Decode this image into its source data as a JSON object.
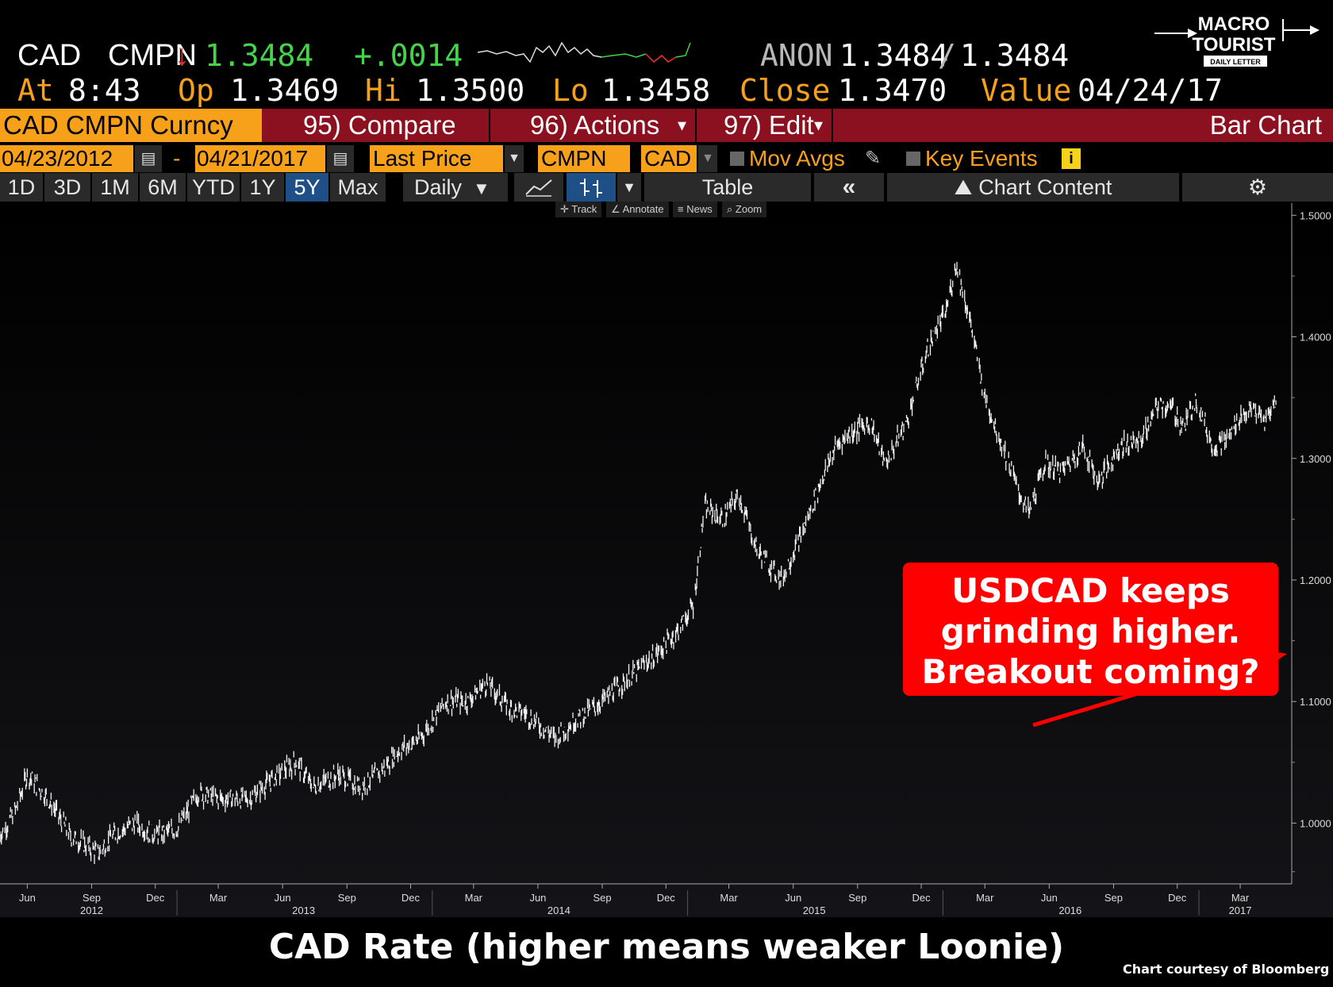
{
  "quote": {
    "currency": "CAD",
    "source": "CMPN",
    "arrow": "↓",
    "last": "1.3484",
    "change": "+.0014",
    "anon_label": "ANON",
    "bid": "1.3484",
    "slash": "/",
    "ask": "1.3484",
    "at_label": "At",
    "time": "8:43",
    "open_label": "Op",
    "open": "1.3469",
    "high_label": "Hi",
    "high": "1.3500",
    "low_label": "Lo",
    "low": "1.3458",
    "close_label": "Close",
    "close": "1.3470",
    "value_label": "Value",
    "value_date": "04/24/17"
  },
  "logo": {
    "line1": "MACRO",
    "line2": "TOURIST",
    "line3": "DAILY LETTER"
  },
  "menu": {
    "security": "CAD CMPN Curncy",
    "compare": "95) Compare",
    "actions": "96) Actions",
    "edit": "97) Edit",
    "chart_type": "Bar Chart"
  },
  "controls": {
    "start_date": "04/23/2012",
    "dash": "-",
    "end_date": "04/21/2017",
    "field": "Last Price",
    "source": "CMPN",
    "currency": "CAD",
    "mov_avgs": "Mov Avgs",
    "key_events": "Key Events"
  },
  "tabs": {
    "items": [
      "1D",
      "3D",
      "1M",
      "6M",
      "YTD",
      "1Y",
      "5Y",
      "Max"
    ],
    "active": "5Y",
    "frequency": "Daily",
    "table": "Table",
    "chart_content": "Chart Content"
  },
  "toolbar": {
    "track": "Track",
    "annotate": "Annotate",
    "news": "News",
    "zoom": "Zoom"
  },
  "colors": {
    "orange": "#f7a11a",
    "red_bar": "#8b1020",
    "up": "#46d24a",
    "down": "#ff2b2b",
    "annotation": "#ff0000"
  },
  "annotation": {
    "line1": "USDCAD keeps",
    "line2": "grinding higher.",
    "line3": "Breakout coming?"
  },
  "footer": {
    "title": "CAD Rate (higher means weaker Loonie)",
    "credit": "Chart courtesy of Bloomberg"
  },
  "chart_data": {
    "type": "bar",
    "title": "",
    "xlabel": "",
    "ylabel": "",
    "ylim": [
      0.95,
      1.51
    ],
    "grid": false,
    "yticks": [
      "1.5000",
      "1.4000",
      "1.3000",
      "1.2000",
      "1.1000",
      "1.0000"
    ],
    "ytick_values": [
      1.5,
      1.4,
      1.3,
      1.2,
      1.1,
      1.0
    ],
    "xtick_months": [
      {
        "label": "Jun",
        "date": "2012-06-01"
      },
      {
        "label": "Sep",
        "date": "2012-09-01"
      },
      {
        "label": "Dec",
        "date": "2012-12-01"
      },
      {
        "label": "Mar",
        "date": "2013-03-01"
      },
      {
        "label": "Jun",
        "date": "2013-06-01"
      },
      {
        "label": "Sep",
        "date": "2013-09-01"
      },
      {
        "label": "Dec",
        "date": "2013-12-01"
      },
      {
        "label": "Mar",
        "date": "2014-03-01"
      },
      {
        "label": "Jun",
        "date": "2014-06-01"
      },
      {
        "label": "Sep",
        "date": "2014-09-01"
      },
      {
        "label": "Dec",
        "date": "2014-12-01"
      },
      {
        "label": "Mar",
        "date": "2015-03-01"
      },
      {
        "label": "Jun",
        "date": "2015-06-01"
      },
      {
        "label": "Sep",
        "date": "2015-09-01"
      },
      {
        "label": "Dec",
        "date": "2015-12-01"
      },
      {
        "label": "Mar",
        "date": "2016-03-01"
      },
      {
        "label": "Jun",
        "date": "2016-06-01"
      },
      {
        "label": "Sep",
        "date": "2016-09-01"
      },
      {
        "label": "Dec",
        "date": "2016-12-01"
      },
      {
        "label": "Mar",
        "date": "2017-03-01"
      }
    ],
    "xtick_years": [
      {
        "label": "2012",
        "date": "2012-09-01"
      },
      {
        "label": "2013",
        "date": "2013-07-01"
      },
      {
        "label": "2014",
        "date": "2014-07-01"
      },
      {
        "label": "2015",
        "date": "2015-07-01"
      },
      {
        "label": "2016",
        "date": "2016-07-01"
      },
      {
        "label": "2017",
        "date": "2017-03-01"
      }
    ],
    "xlim": [
      "2012-04-23",
      "2017-04-21"
    ],
    "series": [
      {
        "x": [
          "2012-04-23",
          "2012-05-15",
          "2012-06-01",
          "2012-07-01",
          "2012-08-01",
          "2012-09-10",
          "2012-10-01",
          "2012-11-01",
          "2012-12-01",
          "2013-01-01",
          "2013-02-01",
          "2013-03-01",
          "2013-04-15",
          "2013-05-15",
          "2013-06-20",
          "2013-07-15",
          "2013-08-20",
          "2013-09-20",
          "2013-10-15",
          "2013-11-15",
          "2013-12-15",
          "2014-01-20",
          "2014-02-20",
          "2014-03-20",
          "2014-04-20",
          "2014-05-15",
          "2014-06-25",
          "2014-07-25",
          "2014-08-20",
          "2014-09-20",
          "2014-10-20",
          "2014-11-20",
          "2014-12-20",
          "2015-01-10",
          "2015-01-25",
          "2015-02-20",
          "2015-03-15",
          "2015-04-10",
          "2015-05-15",
          "2015-06-15",
          "2015-07-10",
          "2015-08-01",
          "2015-08-20",
          "2015-09-20",
          "2015-10-10",
          "2015-11-10",
          "2015-12-10",
          "2016-01-05",
          "2016-01-20",
          "2016-02-10",
          "2016-03-01",
          "2016-03-20",
          "2016-04-20",
          "2016-05-03",
          "2016-05-25",
          "2016-06-20",
          "2016-07-20",
          "2016-08-10",
          "2016-09-10",
          "2016-10-10",
          "2016-11-05",
          "2016-11-25",
          "2016-12-10",
          "2016-12-28",
          "2017-01-20",
          "2017-02-10",
          "2017-03-01",
          "2017-03-20",
          "2017-04-05",
          "2017-04-21"
        ],
        "values": [
          0.99,
          1.01,
          1.04,
          1.02,
          0.99,
          0.975,
          0.99,
          1.0,
          0.99,
          0.995,
          1.025,
          1.02,
          1.02,
          1.035,
          1.05,
          1.03,
          1.04,
          1.03,
          1.04,
          1.06,
          1.07,
          1.1,
          1.1,
          1.115,
          1.095,
          1.09,
          1.07,
          1.085,
          1.095,
          1.11,
          1.125,
          1.14,
          1.16,
          1.18,
          1.26,
          1.25,
          1.27,
          1.225,
          1.2,
          1.24,
          1.28,
          1.31,
          1.32,
          1.33,
          1.295,
          1.33,
          1.39,
          1.42,
          1.46,
          1.41,
          1.35,
          1.32,
          1.27,
          1.255,
          1.295,
          1.29,
          1.31,
          1.28,
          1.31,
          1.315,
          1.345,
          1.34,
          1.325,
          1.35,
          1.31,
          1.315,
          1.335,
          1.34,
          1.33,
          1.348
        ]
      }
    ]
  }
}
